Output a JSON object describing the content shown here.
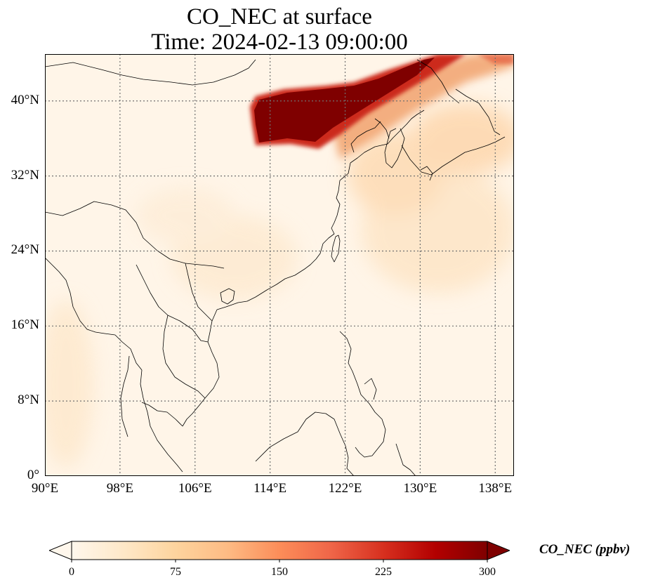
{
  "title_line1": "CO_NEC at surface",
  "title_line2": "Time: 2024-02-13 09:00:00",
  "map": {
    "lon_range": [
      90,
      140
    ],
    "lat_range": [
      0,
      45
    ],
    "gridlines": "dotted",
    "lat_ticks": [
      "0°",
      "8°N",
      "16°N",
      "24°N",
      "32°N",
      "40°N"
    ],
    "lon_ticks": [
      "90°E",
      "98°E",
      "106°E",
      "114°E",
      "122°E",
      "130°E",
      "138°E"
    ],
    "field_colors": {
      "background": "#fff5e8",
      "plume_core": "#7f0000",
      "plume_edge": "#cc2a1e",
      "haze": "#fdd49e"
    },
    "coast_color": "#000000"
  },
  "colorbar": {
    "label": "CO_NEC (ppbv)",
    "ticks": [
      "0",
      "75",
      "150",
      "225",
      "300"
    ],
    "range": [
      0,
      300
    ],
    "extend": "both",
    "colormap": [
      "#fff7ec",
      "#fee8c8",
      "#fdd49e",
      "#fdbb84",
      "#fc8d59",
      "#ef6548",
      "#d7301f",
      "#b30000",
      "#7f0000"
    ]
  }
}
